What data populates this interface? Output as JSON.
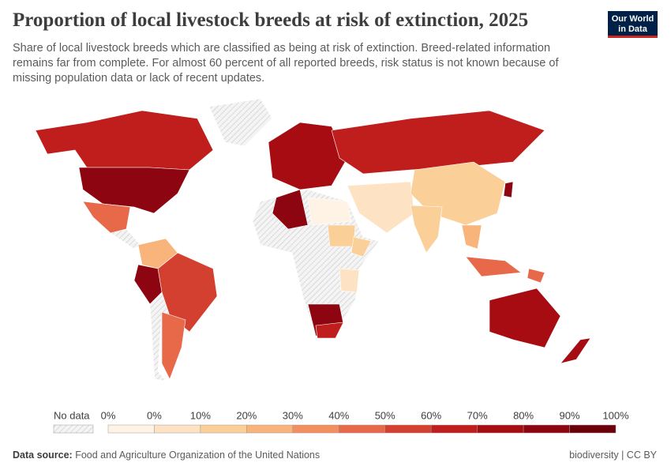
{
  "header": {
    "title": "Proportion of local livestock breeds at risk of extinction, 2025",
    "subtitle": "Share of local livestock breeds which are classified as being at risk of extinction. Breed-related information remains far from complete. For almost 60 percent of all reported breeds, risk status is not known because of missing population data or lack of recent updates.",
    "logo": "Our World in Data"
  },
  "legend": {
    "no_data": "No data",
    "ticks": [
      "0%",
      "0%",
      "10%",
      "20%",
      "30%",
      "40%",
      "50%",
      "60%",
      "70%",
      "80%",
      "90%",
      "100%"
    ],
    "colors": [
      "#fff3e6",
      "#fde3c4",
      "#fbcf98",
      "#f8b47a",
      "#f39060",
      "#e8684a",
      "#d4402f",
      "#bf1e1c",
      "#a70c12",
      "#8c0510",
      "#6b000c"
    ]
  },
  "footer": {
    "source_label": "Data source:",
    "source": "Food and Agriculture Organization of the United Nations",
    "license": "biodiversity | CC BY"
  }
}
